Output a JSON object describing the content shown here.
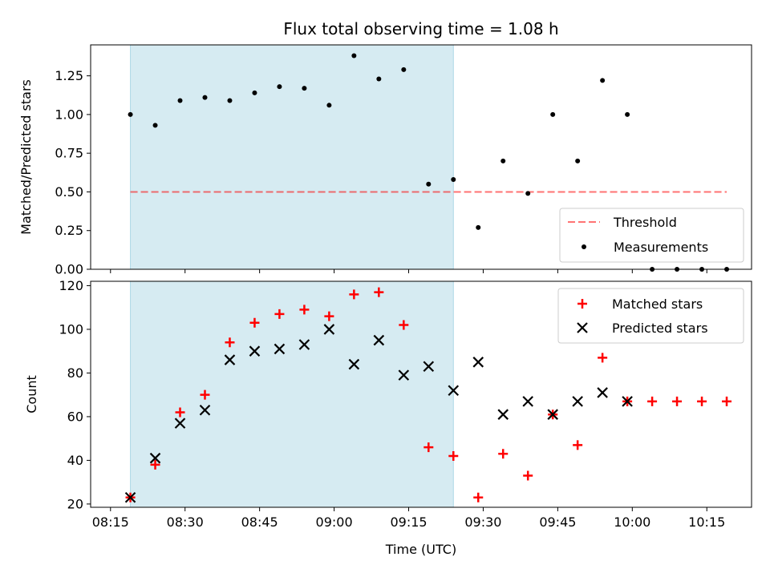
{
  "title": "Flux total observing time = 1.08 h",
  "colors": {
    "shade": "#add8e6",
    "threshold": "#ff0000",
    "measurements": "#000000",
    "matched": "#ff0000",
    "predicted": "#000000"
  },
  "chart_data": [
    {
      "type": "scatter",
      "ylabel": "Matched/Predicted stars",
      "xlabel": "",
      "ylim": [
        0,
        1.45
      ],
      "yticks": [
        "0.00",
        "0.25",
        "0.50",
        "0.75",
        "1.00",
        "1.25"
      ],
      "x_range": [
        "08:11",
        "10:24"
      ],
      "shaded_range": [
        "08:19",
        "09:24"
      ],
      "legend_position": "lower right",
      "threshold": {
        "name": "Threshold",
        "value": 0.5,
        "x_range": [
          "08:19",
          "10:19"
        ],
        "style": "dashed"
      },
      "series": [
        {
          "name": "Measurements",
          "marker": "dot",
          "x": [
            "08:19",
            "08:24",
            "08:29",
            "08:34",
            "08:39",
            "08:44",
            "08:49",
            "08:54",
            "08:59",
            "09:04",
            "09:09",
            "09:14",
            "09:19",
            "09:24",
            "09:29",
            "09:34",
            "09:39",
            "09:44",
            "09:49",
            "09:54",
            "09:59",
            "10:04",
            "10:09",
            "10:14",
            "10:19"
          ],
          "y": [
            1.0,
            0.93,
            1.09,
            1.11,
            1.09,
            1.14,
            1.18,
            1.17,
            1.06,
            1.38,
            1.23,
            1.29,
            0.55,
            0.58,
            0.27,
            0.7,
            0.49,
            1.0,
            0.7,
            1.22,
            1.0,
            0.0,
            0.0,
            0.0,
            0.0
          ]
        }
      ]
    },
    {
      "type": "scatter",
      "ylabel": "Count",
      "xlabel": "Time (UTC)",
      "ylim": [
        18.5,
        122
      ],
      "yticks": [
        "20",
        "40",
        "60",
        "80",
        "100",
        "120"
      ],
      "x_range": [
        "08:11",
        "10:24"
      ],
      "xticks": [
        "08:15",
        "08:30",
        "08:45",
        "09:00",
        "09:15",
        "09:30",
        "09:45",
        "10:00",
        "10:15"
      ],
      "shaded_range": [
        "08:19",
        "09:24"
      ],
      "legend_position": "upper right",
      "series": [
        {
          "name": "Matched stars",
          "marker": "plus",
          "x": [
            "08:19",
            "08:24",
            "08:29",
            "08:34",
            "08:39",
            "08:44",
            "08:49",
            "08:54",
            "08:59",
            "09:04",
            "09:09",
            "09:14",
            "09:19",
            "09:24",
            "09:29",
            "09:34",
            "09:39",
            "09:44",
            "09:49",
            "09:54",
            "09:59",
            "10:04",
            "10:09",
            "10:14",
            "10:19"
          ],
          "y": [
            23,
            38,
            62,
            70,
            94,
            103,
            107,
            109,
            106,
            116,
            117,
            102,
            46,
            42,
            23,
            43,
            33,
            61,
            47,
            87,
            67,
            67,
            67,
            67,
            67
          ]
        },
        {
          "name": "Predicted stars",
          "marker": "x",
          "x": [
            "08:19",
            "08:24",
            "08:29",
            "08:34",
            "08:39",
            "08:44",
            "08:49",
            "08:54",
            "08:59",
            "09:04",
            "09:09",
            "09:14",
            "09:19",
            "09:24",
            "09:29",
            "09:34",
            "09:39",
            "09:44",
            "09:49",
            "09:54",
            "09:59"
          ],
          "y": [
            23,
            41,
            57,
            63,
            86,
            90,
            91,
            93,
            100,
            84,
            95,
            79,
            83,
            72,
            85,
            61,
            67,
            61,
            67,
            71,
            67
          ]
        }
      ]
    }
  ]
}
